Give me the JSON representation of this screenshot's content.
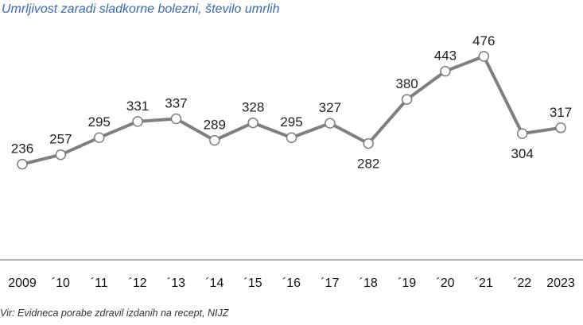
{
  "chart_data": {
    "type": "line",
    "title": "Umrljivost zaradi sladkorne bolezni, število umrlih",
    "source": "Vir: Evidneca porabe zdravil izdanih na recept, NIJZ",
    "categories": [
      "2009",
      "´10",
      "´11",
      "´12",
      "´13",
      "´14",
      "´15",
      "´16",
      "´17",
      "´18",
      "´19",
      "´20",
      "´21",
      "´22",
      "2023"
    ],
    "values": [
      236,
      257,
      295,
      331,
      337,
      289,
      328,
      295,
      327,
      282,
      380,
      443,
      476,
      304,
      317
    ],
    "label_positions": [
      "above",
      "above",
      "above",
      "above",
      "above",
      "above",
      "above",
      "above",
      "above",
      "below",
      "above",
      "above",
      "above",
      "below",
      "above"
    ],
    "ylim": [
      0,
      500
    ],
    "grid": false,
    "legend": "none",
    "colors": {
      "line": "#7f7f7f",
      "marker_fill": "#ffffff",
      "marker_stroke": "#7f7f7f",
      "axis": "#9a9a9a",
      "title": "#3a67b4"
    }
  }
}
